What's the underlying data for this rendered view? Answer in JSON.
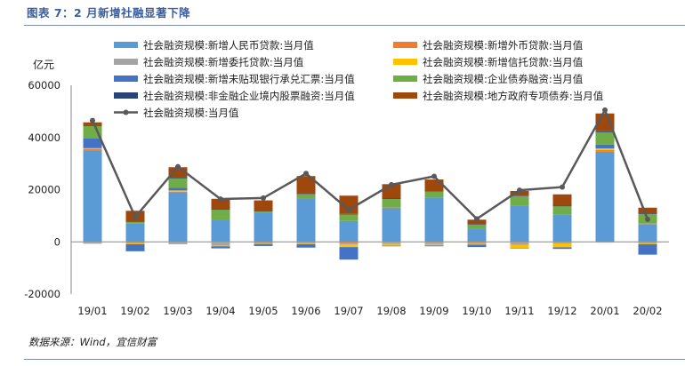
{
  "title": "图表 7：2 月新增社融显著下降",
  "source": "数据来源：Wind，宜信财富",
  "chart_data": {
    "type": "bar",
    "stacked": true,
    "ylabel": "亿元",
    "ylim": [
      -20000,
      60000
    ],
    "yticks": [
      "-20000",
      "0",
      "20000",
      "40000",
      "60000"
    ],
    "categories": [
      "19/01",
      "19/02",
      "19/03",
      "19/04",
      "19/05",
      "19/06",
      "19/07",
      "19/08",
      "19/09",
      "19/10",
      "19/11",
      "19/12",
      "20/01",
      "20/02"
    ],
    "legend_position": "top",
    "series": [
      {
        "name": "社会融资规模:新增人民币贷款:当月值",
        "color": "#5b9bd5",
        "values": [
          35000,
          7000,
          19000,
          8500,
          11000,
          16500,
          8000,
          13000,
          17000,
          5000,
          14000,
          10500,
          34500,
          6800
        ]
      },
      {
        "name": "社会融资规模:新增外币贷款:当月值",
        "color": "#ed7d31",
        "values": [
          600,
          -100,
          200,
          100,
          -100,
          100,
          -400,
          100,
          -100,
          -200,
          -100,
          100,
          700,
          400
        ]
      },
      {
        "name": "社会融资规模:新增委托贷款:当月值",
        "color": "#a5a5a5",
        "values": [
          -700,
          -500,
          -900,
          -1500,
          -700,
          -700,
          -600,
          -800,
          -800,
          -600,
          -1000,
          -600,
          -300,
          -600
        ]
      },
      {
        "name": "社会融资规模:新增信托贷款:当月值",
        "color": "#ffc000",
        "values": [
          300,
          -300,
          500,
          -200,
          -100,
          -200,
          -1000,
          -700,
          -500,
          -300,
          -1200,
          -1500,
          600,
          -300
        ]
      },
      {
        "name": "社会融资规模:新增未贴现银行承兑汇票:当月值",
        "color": "#4472c4",
        "values": [
          3800,
          -2700,
          1000,
          -800,
          -700,
          -1300,
          -4800,
          -200,
          -300,
          -900,
          -100,
          -600,
          1500,
          -4000
        ]
      },
      {
        "name": "社会融资规模:企业债券融资:当月值",
        "color": "#70ad47",
        "values": [
          4700,
          700,
          3800,
          3700,
          600,
          1600,
          2500,
          3300,
          2200,
          1700,
          3500,
          3000,
          4700,
          3400
        ]
      },
      {
        "name": "社会融资规模:非金融企业境内股票融资:当月值",
        "color": "#264478",
        "values": [
          300,
          100,
          100,
          200,
          200,
          200,
          200,
          200,
          200,
          100,
          200,
          400,
          400,
          300
        ]
      },
      {
        "name": "社会融资规模:地方政府专项债券:当月值",
        "color": "#9e480e",
        "values": [
          1100,
          4100,
          4000,
          4000,
          4100,
          6800,
          7000,
          5500,
          4500,
          1700,
          1800,
          4200,
          6800,
          2200
        ]
      }
    ],
    "line": {
      "name": "社会融资规模:当月值",
      "color": "#595959",
      "values": [
        46500,
        9500,
        28800,
        16400,
        16800,
        26200,
        12300,
        21900,
        25100,
        8800,
        19800,
        21000,
        50500,
        8600
      ]
    }
  }
}
